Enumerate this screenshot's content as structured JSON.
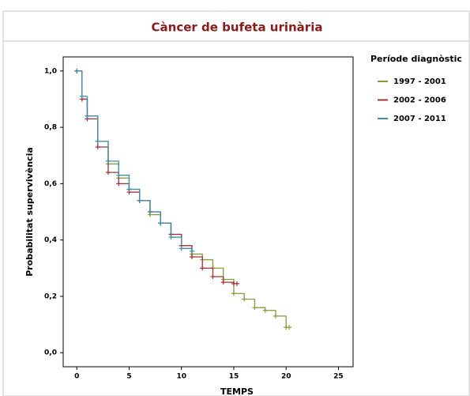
{
  "chart_data": {
    "type": "line",
    "step": true,
    "title": "Càncer de bufeta urinària",
    "x_label": "TEMPS",
    "y_label": "Probabilitat supervivència",
    "legend_title": "Període diagnòstic",
    "legend": "right",
    "xlim": [
      -1.3,
      26.4
    ],
    "ylim": [
      -0.05,
      1.05
    ],
    "xticks": [
      0,
      5,
      10,
      15,
      20,
      25
    ],
    "yticks": [
      {
        "value": 0,
        "label": "0,0"
      },
      {
        "value": 0.2,
        "label": "0,2"
      },
      {
        "value": 0.4,
        "label": "0,4"
      },
      {
        "value": 0.6,
        "label": "0,6"
      },
      {
        "value": 0.8,
        "label": "0,8"
      },
      {
        "value": 1,
        "label": "1,0"
      }
    ],
    "series": [
      {
        "name": "1997 - 2001",
        "color": "#849c3c",
        "x": [
          0,
          0.5,
          1,
          2,
          3,
          4,
          5,
          6,
          7,
          8,
          9,
          10,
          11,
          12,
          13,
          14,
          15,
          16,
          17,
          18,
          19,
          20,
          20.3
        ],
        "values": [
          1,
          0.9,
          0.84,
          0.75,
          0.67,
          0.62,
          0.58,
          0.54,
          0.49,
          0.46,
          0.42,
          0.38,
          0.35,
          0.33,
          0.3,
          0.26,
          0.21,
          0.19,
          0.16,
          0.15,
          0.13,
          0.09,
          0.09
        ]
      },
      {
        "name": "2002 - 2006",
        "color": "#a5333a",
        "x": [
          0,
          0.5,
          1,
          2,
          3,
          4,
          5,
          6,
          7,
          8,
          9,
          10,
          11,
          12,
          13,
          14,
          15,
          15.3
        ],
        "values": [
          1,
          0.9,
          0.83,
          0.73,
          0.64,
          0.6,
          0.57,
          0.54,
          0.5,
          0.46,
          0.42,
          0.38,
          0.34,
          0.3,
          0.27,
          0.25,
          0.245,
          0.245
        ]
      },
      {
        "name": "2007 - 2011",
        "color": "#3c8fb0",
        "x": [
          0,
          0.5,
          1,
          2,
          3,
          4,
          5,
          6,
          7,
          8,
          9,
          10,
          11
        ],
        "values": [
          1,
          0.91,
          0.84,
          0.75,
          0.68,
          0.63,
          0.58,
          0.54,
          0.5,
          0.46,
          0.41,
          0.37,
          0.36
        ]
      }
    ]
  }
}
